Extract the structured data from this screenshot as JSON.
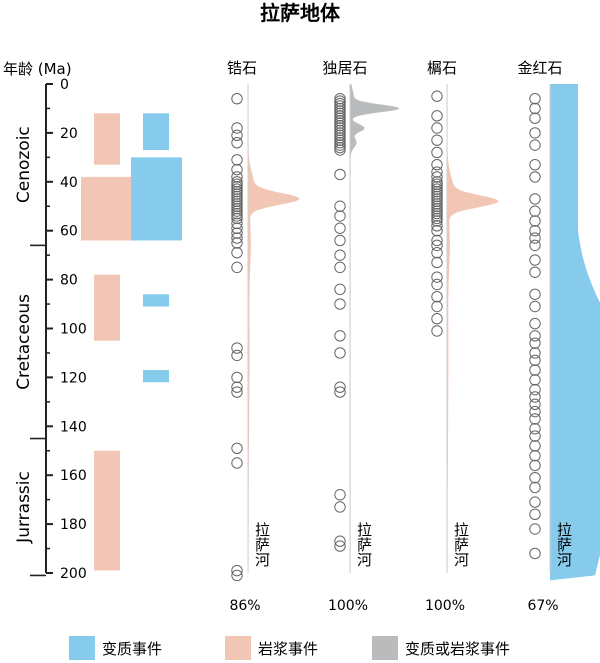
{
  "chart_data": {
    "type": "scatter",
    "title": "拉萨地体",
    "ylabel": "年龄 (Ma)",
    "ylim": [
      0,
      200
    ],
    "yticks": [
      0,
      20,
      40,
      60,
      80,
      100,
      120,
      140,
      160,
      180,
      200
    ],
    "y_reversed": true,
    "grid": false,
    "legend_placement": "bottom",
    "periods": [
      {
        "name": "Cenozoic",
        "from": 0,
        "to": 66
      },
      {
        "name": "Cretaceous",
        "from": 66,
        "to": 145
      },
      {
        "name": "Jurrassic",
        "from": 145,
        "to": 201
      }
    ],
    "event_bars": [
      {
        "type": "magmatic",
        "from": 12,
        "to": 33
      },
      {
        "type": "magmatic",
        "from": 38,
        "to": 64
      },
      {
        "type": "magmatic",
        "from": 78,
        "to": 105
      },
      {
        "type": "magmatic",
        "from": 150,
        "to": 199
      },
      {
        "type": "metamorphic",
        "from": 12,
        "to": 27
      },
      {
        "type": "metamorphic",
        "from": 30,
        "to": 64
      },
      {
        "type": "metamorphic",
        "from": 86,
        "to": 91
      },
      {
        "type": "metamorphic",
        "from": 117,
        "to": 122
      }
    ],
    "series": [
      {
        "name": "锆石",
        "sample": "拉萨河",
        "percentage": "86%",
        "kde_type": "magmatic",
        "kde_peak": 47,
        "ages": [
          6,
          18,
          21,
          24,
          31,
          35,
          38,
          40,
          41,
          42,
          43,
          44,
          45,
          46,
          47,
          48,
          49,
          50,
          51,
          52,
          53,
          54,
          55,
          57,
          59,
          61,
          63,
          65,
          69,
          75,
          108,
          111,
          120,
          124,
          126,
          149,
          155,
          199,
          201
        ]
      },
      {
        "name": "独居石",
        "sample": "拉萨河",
        "percentage": "100%",
        "kde_type": "undifferentiated",
        "kde_peak": 10,
        "ages": [
          6,
          7,
          8,
          9,
          10,
          11,
          12,
          13,
          14,
          15,
          16,
          17,
          18,
          19,
          20,
          21,
          22,
          23,
          24,
          25,
          26,
          27,
          37,
          50,
          54,
          59,
          64,
          70,
          75,
          84,
          90,
          103,
          110,
          124,
          126,
          168,
          173,
          187,
          189
        ]
      },
      {
        "name": "榍石",
        "sample": "拉萨河",
        "percentage": "100%",
        "kde_type": "magmatic",
        "kde_peak": 48,
        "ages": [
          5,
          13,
          18,
          23,
          28,
          33,
          36,
          38,
          40,
          41,
          42,
          43,
          44,
          45,
          46,
          47,
          48,
          49,
          50,
          51,
          52,
          53,
          54,
          55,
          56,
          58,
          60,
          64,
          66,
          69,
          73,
          79,
          82,
          87,
          91,
          96,
          101
        ]
      },
      {
        "name": "金红石",
        "sample": "拉萨河",
        "percentage": "67%",
        "kde_type": "metamorphic",
        "kde_peak": 135,
        "ages": [
          6,
          10,
          14,
          20,
          25,
          33,
          38,
          47,
          52,
          56,
          60,
          63,
          66,
          72,
          77,
          86,
          91,
          98,
          103,
          106,
          110,
          113,
          117,
          121,
          125,
          128,
          131,
          134,
          137,
          141,
          144,
          148,
          152,
          156,
          161,
          165,
          171,
          176,
          182,
          192
        ]
      }
    ],
    "legend": [
      {
        "label": "变质事件",
        "color": "#86cbec"
      },
      {
        "label": "岩浆事件",
        "color": "#f2c6b4"
      },
      {
        "label": "变质或岩浆事件",
        "color": "#b9bbbd"
      }
    ],
    "colors": {
      "metamorphic": "#86cbec",
      "magmatic": "#f2c6b4",
      "undifferentiated": "#b9bbbd",
      "metamorphic_kde": "#86cbec",
      "point_stroke": "#666666",
      "axis": "#222222"
    }
  }
}
